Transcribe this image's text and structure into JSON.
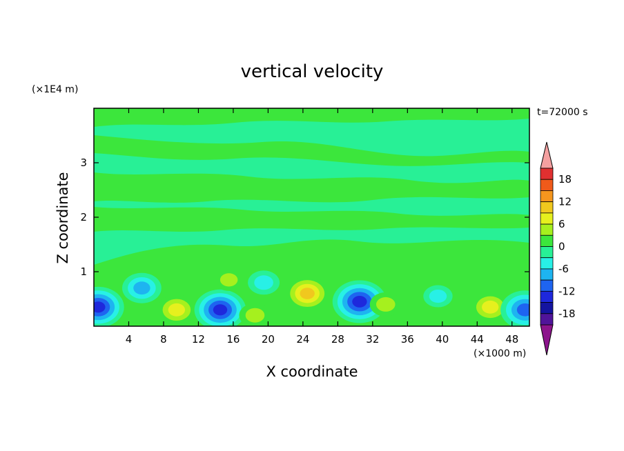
{
  "chart_data": {
    "type": "heatmap",
    "title": "vertical velocity",
    "xlabel": "X coordinate",
    "ylabel": "Z coordinate",
    "x_unit": "(×1000 m)",
    "y_unit": "(×1E4 m)",
    "time_label": "t=72000 s",
    "xlim": [
      0,
      50
    ],
    "ylim": [
      0,
      4
    ],
    "x_ticks": [
      4,
      8,
      12,
      16,
      20,
      24,
      28,
      32,
      36,
      40,
      44,
      48
    ],
    "y_ticks": [
      1,
      2,
      3
    ],
    "colorbar": {
      "levels": [
        -21,
        -18,
        -15,
        -12,
        -9,
        -6,
        -3,
        0,
        3,
        6,
        9,
        12,
        15,
        18,
        21
      ],
      "labels": [
        18,
        12,
        6,
        0,
        -6,
        -12,
        -18
      ],
      "colors": [
        "#e03030",
        "#f05a1a",
        "#f5961e",
        "#f0c81e",
        "#e6f01e",
        "#a6f01e",
        "#3ce63c",
        "#28f096",
        "#28f0e6",
        "#1eb4f0",
        "#1e64f0",
        "#1e28dc",
        "#1414a0",
        "#50149a"
      ],
      "over_color": "#f4a0a0",
      "under_color": "#8c148c"
    },
    "features": [
      {
        "x": 0.5,
        "z": 0.35,
        "value": -13
      },
      {
        "x": 5.5,
        "z": 0.7,
        "value": -8
      },
      {
        "x": 9.5,
        "z": 0.3,
        "value": 8
      },
      {
        "x": 14.5,
        "z": 0.3,
        "value": -13
      },
      {
        "x": 15.5,
        "z": 0.85,
        "value": 4
      },
      {
        "x": 18.5,
        "z": 0.2,
        "value": 5
      },
      {
        "x": 19.5,
        "z": 0.8,
        "value": -5
      },
      {
        "x": 24.5,
        "z": 0.6,
        "value": 10
      },
      {
        "x": 30.5,
        "z": 0.45,
        "value": -14
      },
      {
        "x": 33.5,
        "z": 0.4,
        "value": 5
      },
      {
        "x": 39.5,
        "z": 0.55,
        "value": -4
      },
      {
        "x": 45.5,
        "z": 0.35,
        "value": 8
      },
      {
        "x": 49.5,
        "z": 0.3,
        "value": -12
      }
    ]
  }
}
